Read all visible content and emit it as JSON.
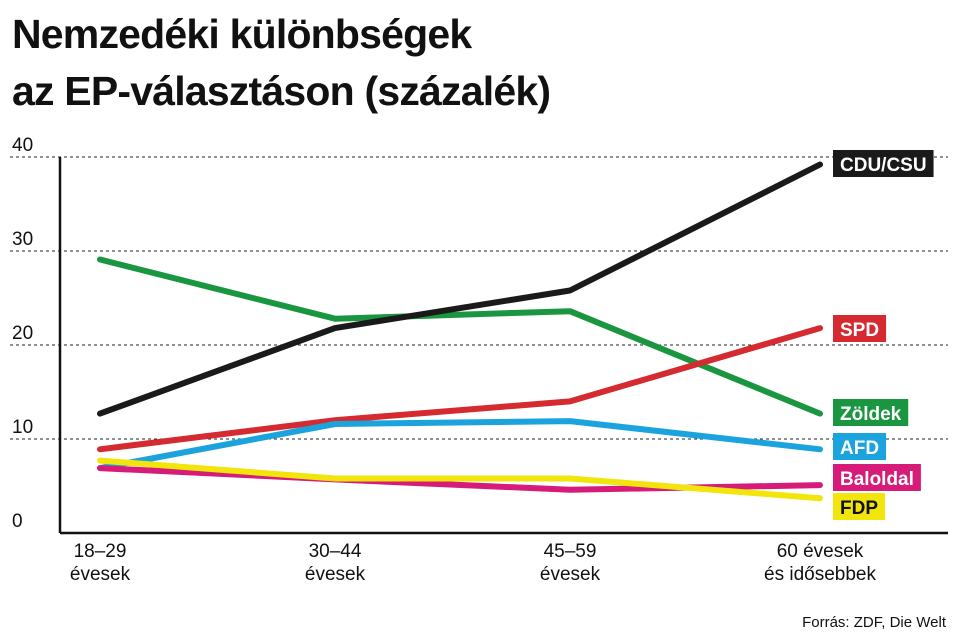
{
  "title": {
    "line1": "Nemzedéki különbségek",
    "line2": "az EP-választáson (százalék)"
  },
  "source": "Forrás: ZDF, Die Welt",
  "chart_data": {
    "type": "line",
    "categories": [
      [
        "18–29",
        "évesek"
      ],
      [
        "30–44",
        "évesek"
      ],
      [
        "45–59",
        "évesek"
      ],
      [
        "60 évesek",
        "és idősebbek"
      ]
    ],
    "ylim": [
      0,
      40
    ],
    "yticks": [
      0,
      10,
      20,
      30,
      40
    ],
    "grid": "horizontal dashed",
    "legend": "labels at line ends, right",
    "series": [
      {
        "name": "Zöldek",
        "color": "#1a9640",
        "values": [
          29.1,
          22.8,
          23.6,
          12.7
        ]
      },
      {
        "name": "CDU/CSU",
        "color": "#1a1a1a",
        "values": [
          12.7,
          21.8,
          25.8,
          39.2
        ]
      },
      {
        "name": "SPD",
        "color": "#d42a30",
        "values": [
          8.9,
          12.0,
          14.0,
          21.8
        ]
      },
      {
        "name": "AFD",
        "color": "#1aa3dc",
        "values": [
          6.9,
          11.6,
          11.9,
          8.9
        ]
      },
      {
        "name": "Baloldal",
        "color": "#d61c78",
        "values": [
          6.9,
          5.7,
          4.6,
          5.1
        ]
      },
      {
        "name": "FDP",
        "color": "#f2e50c",
        "values": [
          7.7,
          5.8,
          5.8,
          3.7
        ]
      }
    ]
  }
}
